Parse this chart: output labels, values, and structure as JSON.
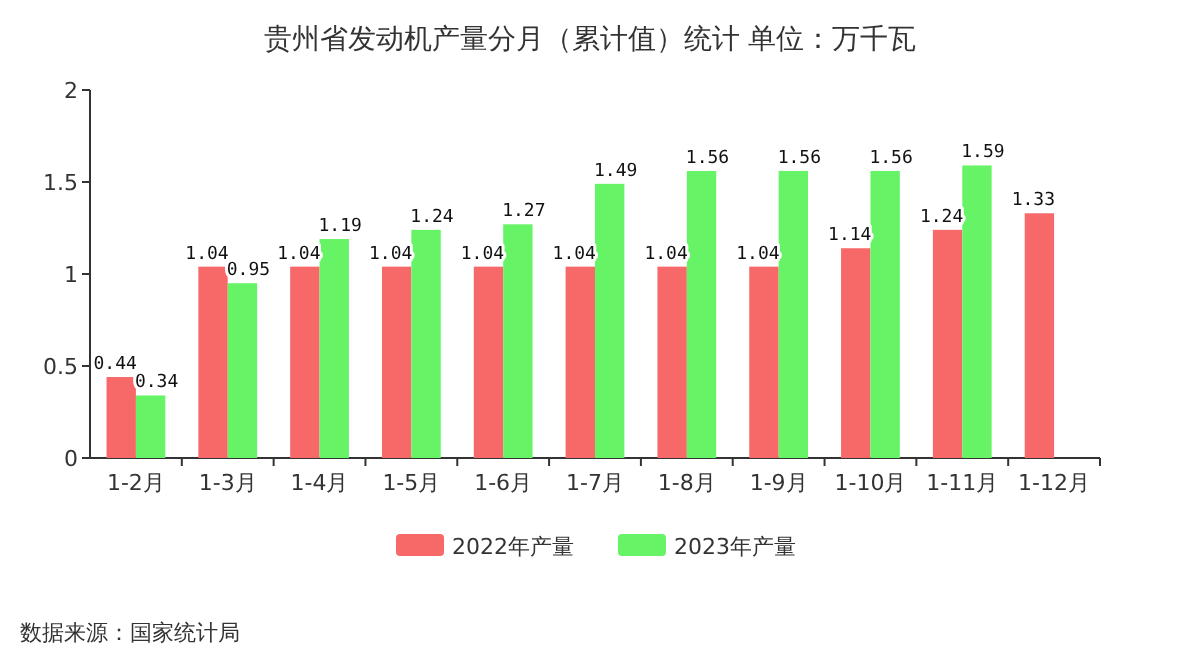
{
  "chart_data": {
    "type": "bar",
    "title": "贵州省发动机产量分月（累计值）统计 单位：万千瓦",
    "categories": [
      "1-2月",
      "1-3月",
      "1-4月",
      "1-5月",
      "1-6月",
      "1-7月",
      "1-8月",
      "1-9月",
      "1-10月",
      "1-11月",
      "1-12月"
    ],
    "series": [
      {
        "name": "2022年产量",
        "color": "#f76868",
        "values": [
          0.44,
          1.04,
          1.04,
          1.04,
          1.04,
          1.04,
          1.04,
          1.04,
          1.14,
          1.24,
          1.33
        ]
      },
      {
        "name": "2023年产量",
        "color": "#66f466",
        "values": [
          0.34,
          0.95,
          1.19,
          1.24,
          1.27,
          1.49,
          1.56,
          1.56,
          1.56,
          1.59,
          null
        ]
      }
    ],
    "ylim": [
      0,
      2
    ],
    "yticks": [
      0,
      0.5,
      1,
      1.5,
      2
    ],
    "data_labels": true,
    "legend": "bottom",
    "grid": false,
    "annotations": [
      "数据来源：国家统计局"
    ]
  }
}
